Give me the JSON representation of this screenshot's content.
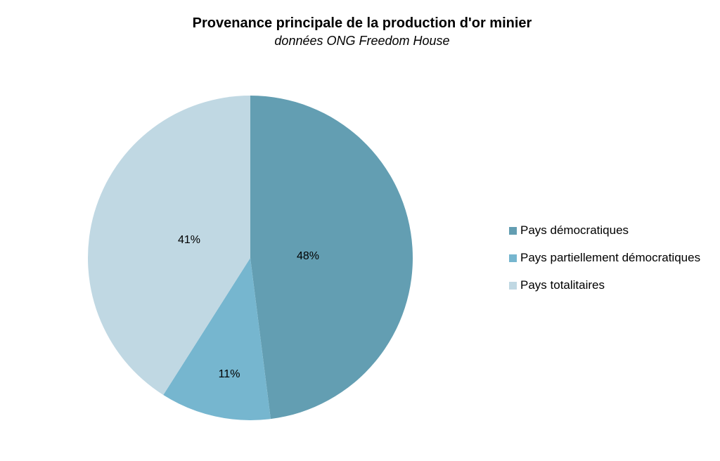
{
  "chart_data": {
    "type": "pie",
    "title": "Provenance principale de la production d'or minier",
    "subtitle": "données ONG Freedom House",
    "legend_position": "right",
    "slices": [
      {
        "label": "Pays démocratiques",
        "value": 48,
        "value_label": "48%",
        "color": "#639eb2"
      },
      {
        "label": "Pays partiellement démocratiques",
        "value": 11,
        "value_label": "11%",
        "color": "#76b6cf"
      },
      {
        "label": "Pays totalitaires",
        "value": 41,
        "value_label": "41%",
        "color": "#c0d8e3"
      }
    ]
  }
}
